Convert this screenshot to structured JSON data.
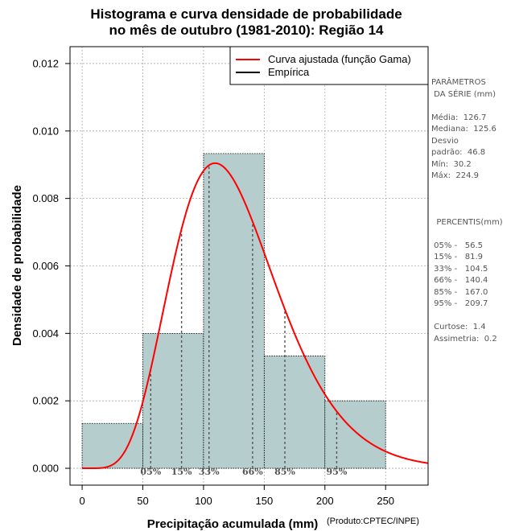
{
  "chart_data": {
    "type": "histogram",
    "title_line1": "Histograma e curva densidade de probabilidade",
    "title_line2": "no mês de outubro (1981-2010): Região 14",
    "xlabel": "Precipitação acumulada (mm)",
    "ylabel": "Densidade de probabilidade",
    "credit": "(Produto:CPTEC/INPE)",
    "xlim": [
      -10,
      285
    ],
    "ylim": [
      -0.0005,
      0.0125
    ],
    "x_ticks": [
      0,
      50,
      100,
      150,
      200,
      250
    ],
    "y_ticks": [
      0.0,
      0.002,
      0.004,
      0.006,
      0.008,
      0.01,
      0.012
    ],
    "y_tick_labels": [
      "0.000",
      "0.002",
      "0.004",
      "0.006",
      "0.008",
      "0.010",
      "0.012"
    ],
    "bins": [
      {
        "from": 0,
        "to": 50,
        "density": 0.00133
      },
      {
        "from": 50,
        "to": 100,
        "density": 0.004
      },
      {
        "from": 100,
        "to": 150,
        "density": 0.00933
      },
      {
        "from": 150,
        "to": 200,
        "density": 0.00333
      },
      {
        "from": 200,
        "to": 250,
        "density": 0.002
      }
    ],
    "bar_color": "#b5cdcd",
    "curve_color": "#ff0000",
    "gamma_fit": {
      "shape": 7.33,
      "scale": 17.3
    },
    "percentile_markers": [
      {
        "label": "05%",
        "x": 56.5
      },
      {
        "label": "15%",
        "x": 81.9
      },
      {
        "label": "33%",
        "x": 104.5
      },
      {
        "label": "66%",
        "x": 140.4
      },
      {
        "label": "85%",
        "x": 167.0
      },
      {
        "label": "95%",
        "x": 209.7
      }
    ],
    "legend": [
      {
        "label": "Curva ajustada (função Gama)",
        "color": "#ff0000"
      },
      {
        "label": "Empírica",
        "color": "#000000"
      }
    ]
  },
  "side_panel": {
    "params_title1": "PARÂMETROS",
    "params_title2": " DA SÉRIE (mm)",
    "media": "Média:  126.7",
    "mediana": "Mediana:  125.6",
    "desvio1": "Desvio",
    "desvio2": "padrão:  46.8",
    "min": "Mín:  30.2",
    "max": "Máx:  224.9",
    "percentis_title": "  PERCENTIS(mm)",
    "p05": " 05% -   56.5",
    "p15": " 15% -   81.9",
    "p33": " 33% -   104.5",
    "p66": " 66% -   140.4",
    "p85": " 85% -   167.0",
    "p95": " 95% -   209.7",
    "curtose": " Curtose:  1.4",
    "assimetria": " Assimetria:  0.2"
  }
}
